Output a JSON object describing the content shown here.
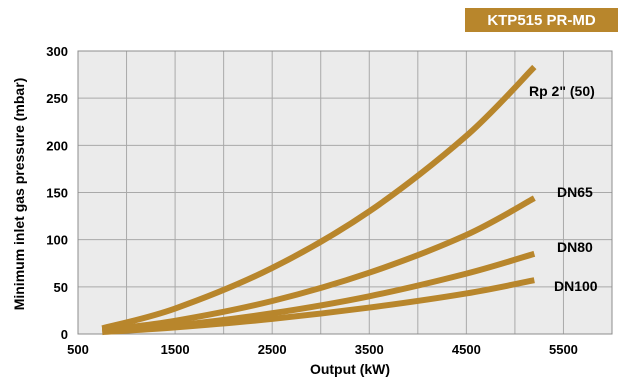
{
  "badge": {
    "text": "KTP515 PR-MD",
    "color": "#b8862c"
  },
  "chart_data": {
    "type": "line",
    "title": "",
    "xlabel": "Output (kW)",
    "ylabel": "Minimum inlet gas pressure (mbar)",
    "xlim": [
      500,
      6000
    ],
    "ylim": [
      0,
      300
    ],
    "xticks": [
      500,
      1500,
      2500,
      3500,
      4500,
      5500
    ],
    "yticks": [
      0,
      50,
      100,
      150,
      200,
      250,
      300
    ],
    "x_minor_grid_step": 500,
    "y_grid_step": 50,
    "grid": true,
    "line_color": "#b8862c",
    "series": [
      {
        "name": "Rp 2\" (50)",
        "x": [
          750,
          1500,
          2500,
          3500,
          4500,
          5200
        ],
        "y": [
          6,
          27,
          70,
          130,
          210,
          283
        ]
      },
      {
        "name": "DN65",
        "x": [
          750,
          1500,
          2500,
          3500,
          4500,
          5200
        ],
        "y": [
          4,
          14,
          35,
          65,
          105,
          144
        ]
      },
      {
        "name": "DN80",
        "x": [
          750,
          1500,
          2500,
          3500,
          4500,
          5200
        ],
        "y": [
          3,
          9,
          22,
          40,
          64,
          85
        ]
      },
      {
        "name": "DN100",
        "x": [
          750,
          1500,
          2500,
          3500,
          4500,
          5200
        ],
        "y": [
          2,
          7,
          16,
          28,
          43,
          57
        ]
      }
    ]
  }
}
